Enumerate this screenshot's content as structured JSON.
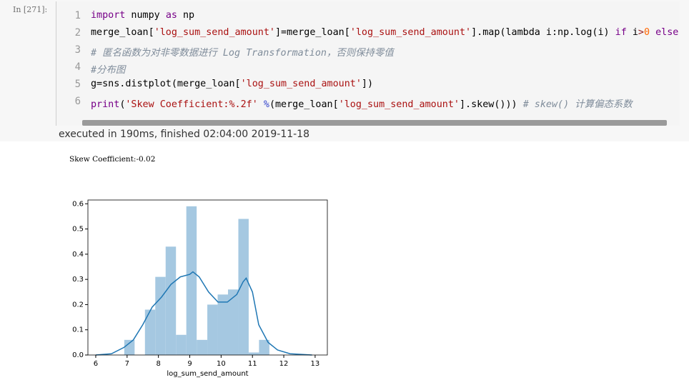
{
  "cell": {
    "prompt": "In  [271]:",
    "line_numbers": [
      1,
      2,
      3,
      4,
      5,
      6
    ],
    "lines": [
      [
        {
          "text": "import",
          "color": "#770088"
        },
        {
          "text": " numpy ",
          "color": "#000000"
        },
        {
          "text": "as",
          "color": "#770088"
        },
        {
          "text": " np",
          "color": "#000000"
        }
      ],
      [
        {
          "text": "merge_loan[",
          "color": "#000000"
        },
        {
          "text": "'log_sum_send_amount'",
          "color": "#aa1111"
        },
        {
          "text": "]=merge_loan[",
          "color": "#000000"
        },
        {
          "text": "'log_sum_send_amount'",
          "color": "#aa1111"
        },
        {
          "text": "].map(lambda i:np.log(i) ",
          "color": "#000000"
        },
        {
          "text": "if",
          "color": "#770088"
        },
        {
          "text": " i",
          "color": "#000000"
        },
        {
          "text": ">",
          "color": "#981a1a"
        },
        {
          "text": "0",
          "color": "#ff6600"
        },
        {
          "text": " ",
          "color": "#000000"
        },
        {
          "text": "else",
          "color": "#770088"
        }
      ],
      [
        {
          "text": "# 匿名函数为对非零数据进行 Log Transformation，否则保持零值",
          "color": "#7f8c9a"
        }
      ],
      [
        {
          "text": "#分布图",
          "color": "#7f8c9a"
        }
      ],
      [
        {
          "text": "g=sns.distplot(merge_loan[",
          "color": "#000000"
        },
        {
          "text": "'log_sum_send_amount'",
          "color": "#aa1111"
        },
        {
          "text": "])",
          "color": "#000000"
        }
      ],
      [
        {
          "text": "print",
          "color": "#770088"
        },
        {
          "text": "(",
          "color": "#000000"
        },
        {
          "text": "'Skew Coefficient:%.2f'",
          "color": "#aa1111"
        },
        {
          "text": " ",
          "color": "#000000"
        },
        {
          "text": "%",
          "color": "#3344cc"
        },
        {
          "text": "(merge_loan[",
          "color": "#000000"
        },
        {
          "text": "'log_sum_send_amount'",
          "color": "#aa1111"
        },
        {
          "text": "].skew())) ",
          "color": "#000000"
        },
        {
          "text": "# skew() 计算偏态系数",
          "color": "#7f8c9a"
        }
      ]
    ]
  },
  "exec_info": "executed in 190ms, finished 02:04:00 2019-11-18",
  "output": "Skew Coefficient:-0.02",
  "chart_data": {
    "type": "histogram",
    "xlabel": "log_sum_send_amount",
    "bins": [
      6.91,
      7.24,
      7.57,
      7.9,
      8.23,
      8.56,
      8.89,
      9.22,
      9.56,
      9.89,
      10.22,
      10.55,
      10.88,
      11.21,
      11.54
    ],
    "values": [
      0.06,
      0,
      0.18,
      0.31,
      0.43,
      0.08,
      0.59,
      0.06,
      0.2,
      0.24,
      0.26,
      0.54,
      0.01,
      0.06
    ],
    "color": "#a5c8e1",
    "kde": {
      "color": "#1f77b4",
      "x": [
        6.0,
        6.5,
        6.9,
        7.2,
        7.5,
        7.8,
        8.1,
        8.4,
        8.7,
        9.0,
        9.1,
        9.3,
        9.6,
        9.9,
        10.2,
        10.5,
        10.7,
        10.8,
        11.0,
        11.2,
        11.5,
        11.8,
        12.2,
        12.9
      ],
      "values": [
        0,
        0.005,
        0.03,
        0.06,
        0.12,
        0.19,
        0.23,
        0.28,
        0.31,
        0.32,
        0.33,
        0.31,
        0.25,
        0.21,
        0.21,
        0.24,
        0.29,
        0.305,
        0.25,
        0.12,
        0.05,
        0.02,
        0.005,
        0
      ]
    },
    "xlim": [
      5.75,
      13.39
    ],
    "xticks": [
      6,
      7,
      8,
      9,
      10,
      11,
      12,
      13
    ],
    "ylim": [
      0,
      0.615
    ],
    "yticks": [
      {
        "value": 0,
        "label": "0.0"
      },
      0.1,
      0.2,
      0.3,
      0.4,
      0.5,
      0.6
    ]
  }
}
